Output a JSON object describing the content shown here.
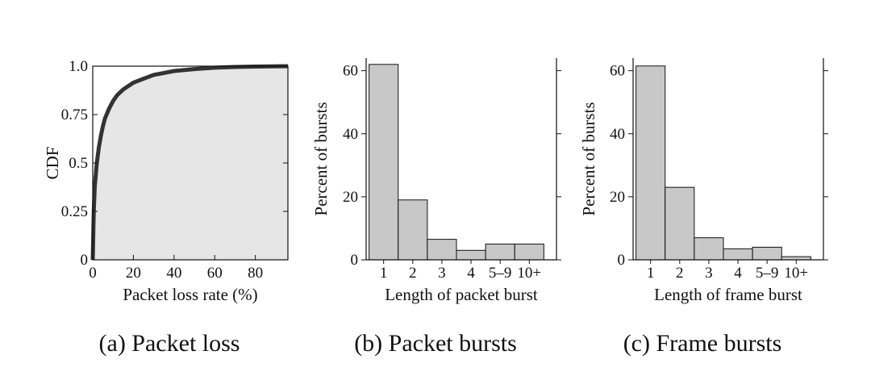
{
  "colors": {
    "ink": "#111111",
    "fill": "#e6e6e6",
    "bar": "#c8c8c8",
    "curve": "#333333"
  },
  "chart_data": [
    {
      "id": "a",
      "type": "area",
      "caption": "(a) Packet loss",
      "xlabel": "Packet loss rate (%)",
      "ylabel": "CDF",
      "xlim": [
        0,
        96
      ],
      "ylim": [
        0,
        1
      ],
      "xticks": [
        0,
        20,
        40,
        60,
        80
      ],
      "xtick_labels": [
        "0",
        "20",
        "40",
        "60",
        "80"
      ],
      "yticks": [
        0,
        0.25,
        0.5,
        0.75,
        1.0
      ],
      "ytick_labels": [
        "0",
        "0.25",
        "0.5",
        "0.75",
        "1.0"
      ],
      "x": [
        0,
        0.5,
        1,
        2,
        3,
        4,
        5,
        6,
        8,
        10,
        12,
        15,
        20,
        25,
        30,
        35,
        40,
        50,
        60,
        70,
        80,
        96
      ],
      "y": [
        0,
        0.25,
        0.38,
        0.5,
        0.58,
        0.64,
        0.69,
        0.73,
        0.78,
        0.82,
        0.85,
        0.88,
        0.915,
        0.935,
        0.955,
        0.965,
        0.975,
        0.985,
        0.992,
        0.996,
        0.998,
        1.0
      ]
    },
    {
      "id": "b",
      "type": "bar",
      "caption": "(b) Packet bursts",
      "xlabel": "Length of packet burst",
      "ylabel": "Percent of bursts",
      "categories": [
        "1",
        "2",
        "3",
        "4",
        "5–9",
        "10+"
      ],
      "values": [
        62,
        19,
        6.5,
        3,
        5,
        5
      ],
      "ylim": [
        0,
        64
      ],
      "yticks": [
        0,
        20,
        40,
        60
      ],
      "ytick_labels": [
        "0",
        "20",
        "40",
        "60"
      ]
    },
    {
      "id": "c",
      "type": "bar",
      "caption": "(c) Frame bursts",
      "xlabel": "Length of frame burst",
      "ylabel": "Percent of bursts",
      "categories": [
        "1",
        "2",
        "3",
        "4",
        "5–9",
        "10+"
      ],
      "values": [
        61.5,
        23,
        7,
        3.5,
        4,
        1
      ],
      "ylim": [
        0,
        64
      ],
      "yticks": [
        0,
        20,
        40,
        60
      ],
      "ytick_labels": [
        "0",
        "20",
        "40",
        "60"
      ]
    }
  ]
}
